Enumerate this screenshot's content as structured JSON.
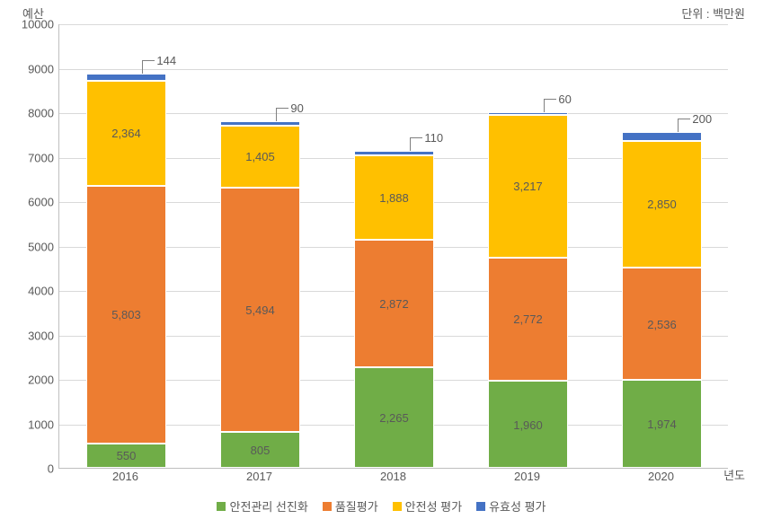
{
  "chart": {
    "type": "stacked-bar",
    "y_axis_title": "예산",
    "unit_label": "단위 : 백만원",
    "x_axis_title": "년도",
    "ylim": [
      0,
      10000
    ],
    "ytick_step": 1000,
    "y_ticks": [
      0,
      1000,
      2000,
      3000,
      4000,
      5000,
      6000,
      7000,
      8000,
      9000,
      10000
    ],
    "background_color": "#ffffff",
    "grid_color": "#d9d9d9",
    "axis_color": "#bfbfbf",
    "text_color": "#595959",
    "label_fontsize": 13,
    "categories": [
      "2016",
      "2017",
      "2018",
      "2019",
      "2020"
    ],
    "series": [
      {
        "name": "안전관리 선진화",
        "color": "#70ad47",
        "values": [
          550,
          805,
          2265,
          1960,
          1974
        ]
      },
      {
        "name": "품질평가",
        "color": "#ed7d31",
        "values": [
          5803,
          5494,
          2872,
          2772,
          2536
        ]
      },
      {
        "name": "안전성 평가",
        "color": "#ffc000",
        "values": [
          2364,
          1405,
          1888,
          3217,
          2850
        ]
      },
      {
        "name": "유효성 평가",
        "color": "#4472c4",
        "values": [
          144,
          90,
          110,
          60,
          200
        ]
      }
    ],
    "bar_width_ratio": 0.6,
    "data_labels": {
      "2016": [
        "550",
        "5,803",
        "2,364",
        "144"
      ],
      "2017": [
        "805",
        "5,494",
        "1,405",
        "90"
      ],
      "2018": [
        "2,265",
        "2,872",
        "1,888",
        "110"
      ],
      "2019": [
        "1,960",
        "2,772",
        "3,217",
        "60"
      ],
      "2020": [
        "1,974",
        "2,536",
        "2,850",
        "200"
      ]
    }
  }
}
